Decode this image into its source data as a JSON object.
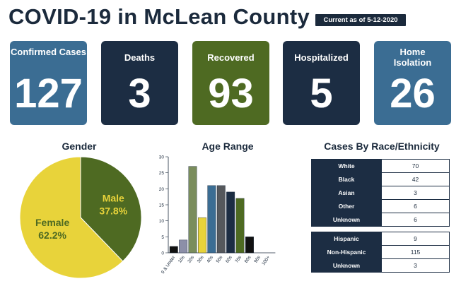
{
  "header": {
    "title": "COVID-19 in McLean County",
    "as_of": "Current as of 5-12-2020"
  },
  "stats": [
    {
      "label": "Confirmed Cases",
      "value": "127",
      "color": "#3b6d93"
    },
    {
      "label": "Deaths",
      "value": "3",
      "color": "#1c2d43"
    },
    {
      "label": "Recovered",
      "value": "93",
      "color": "#4e6a22"
    },
    {
      "label": "Hospitalized",
      "value": "5",
      "color": "#1c2d43"
    },
    {
      "label": "Home Isolation",
      "value": "26",
      "color": "#3b6d93"
    }
  ],
  "colors": {
    "female": "#e8d33a",
    "male": "#4e6a22",
    "male_text": "#e8d33a",
    "female_text": "#4e6a22"
  },
  "chart_data": [
    {
      "type": "pie",
      "title": "Gender",
      "slices": [
        {
          "label": "Female",
          "value": 62.2,
          "display": "62.2%",
          "color": "#e8d33a"
        },
        {
          "label": "Male",
          "value": 37.8,
          "display": "37.8%",
          "color": "#4e6a22"
        }
      ]
    },
    {
      "type": "bar",
      "title": "Age Range",
      "categories": [
        "9 & Under",
        "10s",
        "20s",
        "30s",
        "40s",
        "50s",
        "60s",
        "70s",
        "80s",
        "90s",
        "100+"
      ],
      "values": [
        2,
        4,
        27,
        11,
        21,
        21,
        19,
        17,
        5,
        0,
        0
      ],
      "bar_colors": [
        "#111111",
        "#8c8fa8",
        "#7a8d5c",
        "#e8d33a",
        "#3b6d93",
        "#55585c",
        "#1c2d43",
        "#4e6a22",
        "#111111",
        "#111111",
        "#111111"
      ],
      "ylim": [
        0,
        30
      ],
      "yticks": [
        0,
        5,
        10,
        15,
        20,
        25,
        30
      ]
    },
    {
      "type": "table",
      "title": "Cases By Race/Ethnicity",
      "race": [
        {
          "label": "White",
          "value": "70"
        },
        {
          "label": "Black",
          "value": "42"
        },
        {
          "label": "Asian",
          "value": "3"
        },
        {
          "label": "Other",
          "value": "6"
        },
        {
          "label": "Unknown",
          "value": "6"
        }
      ],
      "ethnicity": [
        {
          "label": "Hispanic",
          "value": "9"
        },
        {
          "label": "Non-Hispanic",
          "value": "115"
        },
        {
          "label": "Unknown",
          "value": "3"
        }
      ]
    }
  ]
}
